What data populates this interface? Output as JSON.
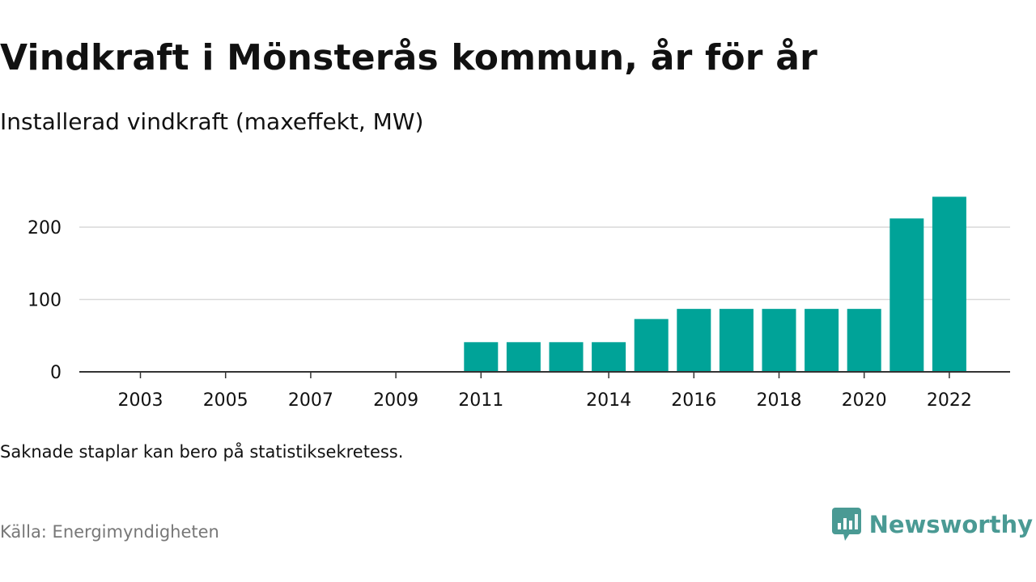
{
  "title": "Vindkraft i Mönsterås kommun, år för år",
  "subtitle": "Installerad vindkraft (maxeffekt, MW)",
  "note": "Saknade staplar kan bero på statistiksekretess.",
  "source": "Källa: Energimyndigheten",
  "brand": {
    "name": "Newsworthy",
    "icon": "newsworthy-logo-icon"
  },
  "colors": {
    "bar": "#00a398",
    "brand": "#4a9a94",
    "text": "#111111",
    "source": "#777777",
    "grid": "#d9d9d9",
    "axis": "#333333"
  },
  "chart_data": {
    "type": "bar",
    "x": [
      2003,
      2004,
      2005,
      2006,
      2007,
      2008,
      2009,
      2010,
      2011,
      2012,
      2013,
      2014,
      2015,
      2016,
      2017,
      2018,
      2019,
      2020,
      2021,
      2022
    ],
    "values": [
      null,
      null,
      null,
      null,
      null,
      null,
      null,
      null,
      41,
      41,
      41,
      41,
      73,
      87,
      87,
      87,
      87,
      87,
      212,
      242
    ],
    "x_ticks": [
      2003,
      2005,
      2007,
      2009,
      2011,
      2014,
      2016,
      2018,
      2020,
      2022
    ],
    "y_ticks": [
      0,
      100,
      200
    ],
    "ylim": [
      0,
      250
    ],
    "grid": true,
    "legend": "none"
  }
}
